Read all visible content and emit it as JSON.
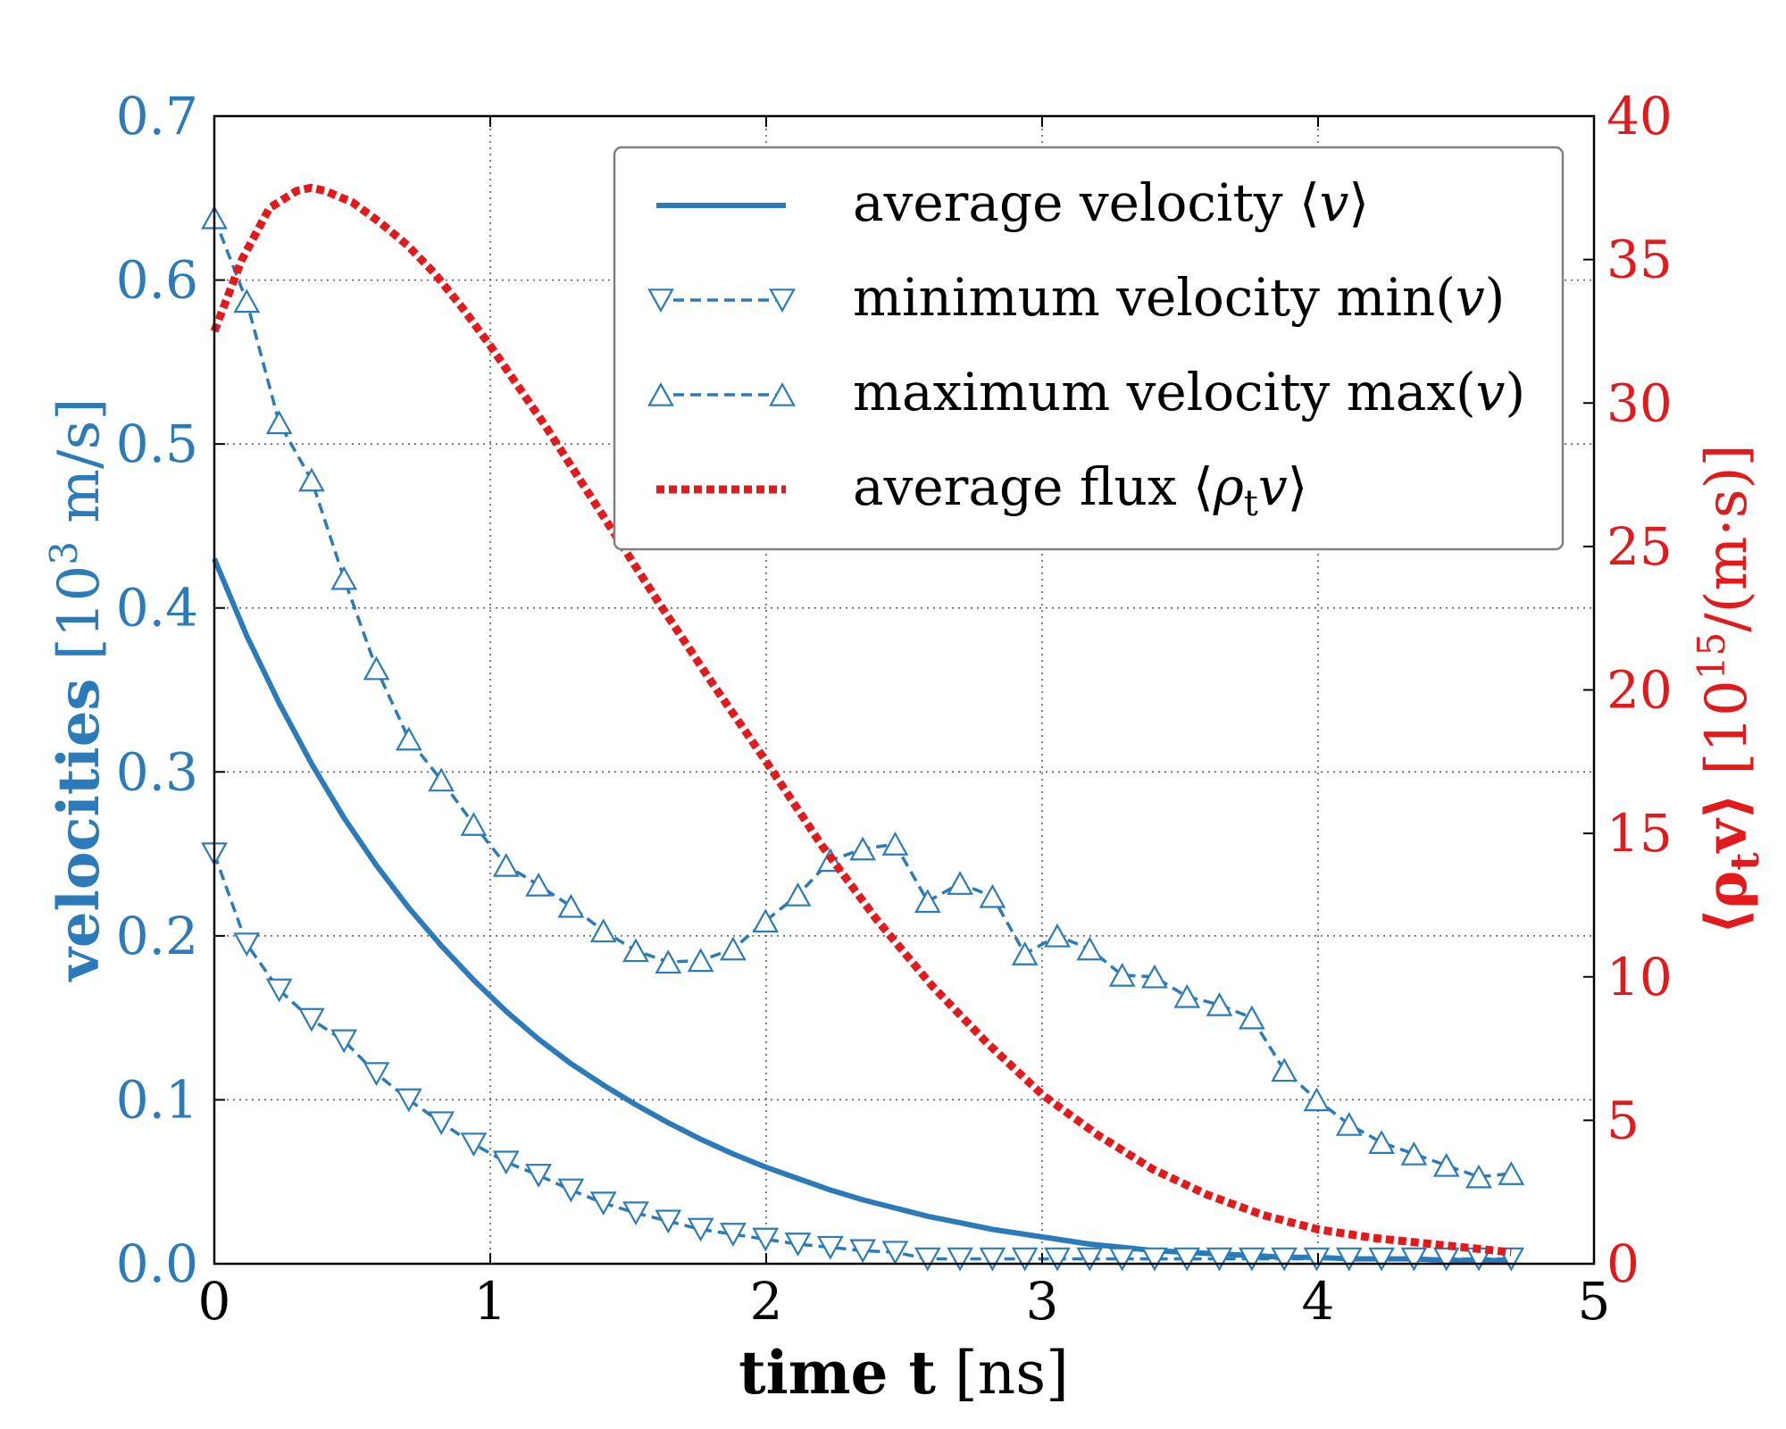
{
  "chart_data": {
    "type": "line",
    "x": [
      0.0,
      0.1175,
      0.235,
      0.3525,
      0.47,
      0.5875,
      0.705,
      0.8225,
      0.94,
      1.0575,
      1.175,
      1.2925,
      1.41,
      1.5275,
      1.645,
      1.7625,
      1.88,
      1.9975,
      2.115,
      2.2325,
      2.35,
      2.4675,
      2.585,
      2.7025,
      2.82,
      2.9375,
      3.055,
      3.1725,
      3.29,
      3.4075,
      3.525,
      3.6425,
      3.76,
      3.8775,
      3.995,
      4.1125,
      4.23,
      4.3475,
      4.465,
      4.5825,
      4.7
    ],
    "xlim": [
      0,
      5
    ],
    "xticks": [
      "0",
      "1",
      "2",
      "3",
      "4",
      "5"
    ],
    "xlabel": {
      "bold": "time t",
      "rest": "[ns]"
    },
    "ylim_left": [
      0,
      0.7
    ],
    "yticks_left": [
      "0.0",
      "0.1",
      "0.2",
      "0.3",
      "0.4",
      "0.5",
      "0.6",
      "0.7"
    ],
    "ylabel_left": {
      "bold": "velocities",
      "rest": "[10",
      "sup": "3",
      "rest2": " m/s]"
    },
    "ylim_right": [
      0,
      40
    ],
    "yticks_right": [
      "0",
      "5",
      "10",
      "15",
      "20",
      "25",
      "30",
      "35",
      "40"
    ],
    "ylabel_right": {
      "bold": "⟨ρ",
      "bold_sub": "t",
      "bold2": "v⟩",
      "rest": " [10",
      "sup": "15",
      "rest2": "/(m·s)]"
    },
    "grid": true,
    "legend_position": "top-right",
    "series": [
      {
        "name": "average velocity",
        "legend_main": "average velocity ⟨",
        "legend_var": "v",
        "legend_end": "⟩",
        "axis": "left",
        "style": "solid",
        "marker": "none",
        "color": "#2b7bba",
        "values": [
          0.43,
          0.383,
          0.342,
          0.305,
          0.272,
          0.243,
          0.217,
          0.194,
          0.173,
          0.154,
          0.137,
          0.122,
          0.109,
          0.097,
          0.086,
          0.076,
          0.067,
          0.059,
          0.052,
          0.045,
          0.039,
          0.034,
          0.029,
          0.025,
          0.021,
          0.018,
          0.015,
          0.012,
          0.01,
          0.008,
          0.007,
          0.006,
          0.005,
          0.004,
          0.004,
          0.003,
          0.003,
          0.003,
          0.002,
          0.002,
          0.002
        ]
      },
      {
        "name": "minimum velocity",
        "legend_main": "minimum velocity min(",
        "legend_var": "v",
        "legend_end": ")",
        "axis": "left",
        "style": "dashed",
        "marker": "triangle-down",
        "color": "#2b7bba",
        "values": [
          0.25,
          0.195,
          0.167,
          0.149,
          0.136,
          0.116,
          0.1,
          0.086,
          0.073,
          0.062,
          0.054,
          0.045,
          0.037,
          0.031,
          0.026,
          0.021,
          0.018,
          0.015,
          0.012,
          0.01,
          0.008,
          0.007,
          0.003,
          0.003,
          0.003,
          0.003,
          0.003,
          0.003,
          0.003,
          0.003,
          0.003,
          0.003,
          0.003,
          0.003,
          0.003,
          0.003,
          0.003,
          0.003,
          0.003,
          0.003,
          0.003
        ]
      },
      {
        "name": "maximum velocity",
        "legend_main": "maximum velocity max(",
        "legend_var": "v",
        "legend_end": ")",
        "axis": "left",
        "style": "dashed",
        "marker": "triangle-up",
        "color": "#2b7bba",
        "values": [
          0.638,
          0.587,
          0.513,
          0.478,
          0.418,
          0.363,
          0.32,
          0.295,
          0.268,
          0.243,
          0.231,
          0.218,
          0.203,
          0.191,
          0.184,
          0.185,
          0.192,
          0.209,
          0.225,
          0.246,
          0.253,
          0.256,
          0.221,
          0.232,
          0.224,
          0.189,
          0.2,
          0.192,
          0.176,
          0.175,
          0.163,
          0.158,
          0.15,
          0.118,
          0.1,
          0.085,
          0.074,
          0.067,
          0.06,
          0.053,
          0.055
        ]
      },
      {
        "name": "average flux",
        "legend_main": "average flux ⟨",
        "legend_var": "ρ",
        "legend_sub": "t",
        "legend_var2": "v",
        "legend_end": "⟩",
        "axis": "right",
        "style": "dotted-thick",
        "marker": "none",
        "color": "#e31a1c",
        "x": [
          0.0,
          0.1,
          0.2,
          0.3,
          0.35,
          0.4,
          0.5,
          0.6,
          0.7,
          0.8,
          0.9,
          1.0,
          1.2,
          1.4,
          1.6,
          1.8,
          2.0,
          2.2,
          2.4,
          2.6,
          2.8,
          3.0,
          3.2,
          3.4,
          3.6,
          3.8,
          4.0,
          4.2,
          4.4,
          4.6,
          4.7
        ],
        "values": [
          32.5,
          35.0,
          36.8,
          37.4,
          37.5,
          37.4,
          37.0,
          36.3,
          35.5,
          34.5,
          33.3,
          32.0,
          29.2,
          26.2,
          23.2,
          20.3,
          17.5,
          14.6,
          12.0,
          9.7,
          7.7,
          5.9,
          4.5,
          3.3,
          2.4,
          1.7,
          1.2,
          0.9,
          0.7,
          0.5,
          0.4
        ]
      }
    ]
  }
}
